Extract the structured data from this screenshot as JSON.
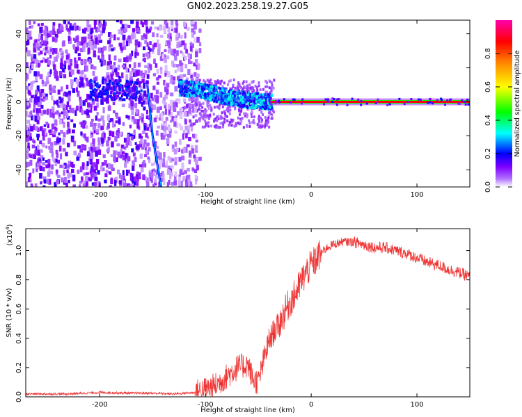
{
  "title": "GN02.2023.258.19.27.G05",
  "chart_data": [
    {
      "type": "heatmap",
      "xlabel": "Height of straight line (km)",
      "ylabel": "Frequency (Hz)",
      "xlim": [
        -270,
        150
      ],
      "ylim": [
        -50,
        48
      ],
      "x_ticks": [
        -200,
        -100,
        0,
        100
      ],
      "y_ticks": [
        -40,
        -20,
        0,
        20,
        40
      ],
      "colorbar": {
        "label": "Normalized spectral amplitude",
        "range": [
          0.0,
          1.0
        ],
        "ticks": [
          0.0,
          0.2,
          0.4,
          0.6,
          0.8
        ],
        "colors": [
          "#ffffff",
          "#7f00ff",
          "#0000ff",
          "#00ffff",
          "#00ff00",
          "#ffff00",
          "#ff8000",
          "#ff0000",
          "#ff00ff"
        ]
      },
      "features": {
        "noise_region_x": [
          -270,
          -105
        ],
        "constant_line_freq": 0,
        "constant_line_x": [
          -40,
          150
        ],
        "drifting_band": [
          {
            "x": -120,
            "y": 8
          },
          {
            "x": -100,
            "y": 6
          },
          {
            "x": -80,
            "y": 3
          },
          {
            "x": -60,
            "y": 1
          },
          {
            "x": -40,
            "y": 0
          }
        ],
        "early_band": {
          "x": [
            -200,
            -165
          ],
          "y": 7
        },
        "diagonal_trace": [
          {
            "x": -155,
            "y": 10
          },
          {
            "x": -150,
            "y": -20
          },
          {
            "x": -142,
            "y": -50
          }
        ]
      }
    },
    {
      "type": "line",
      "xlabel": "Height of straight line (km)",
      "ylabel": "SNR (10 * v/v)",
      "multiplier_label": "(x10",
      "multiplier_exp": "4",
      "multiplier_close": ")",
      "xlim": [
        -270,
        150
      ],
      "ylim": [
        0.0,
        1.15
      ],
      "x_ticks": [
        -200,
        -100,
        0,
        100
      ],
      "y_ticks": [
        0.0,
        0.2,
        0.4,
        0.6,
        0.8,
        1.0
      ],
      "series": [
        {
          "color": "#ee3333",
          "x": [
            -270,
            -250,
            -230,
            -200,
            -170,
            -150,
            -130,
            -110,
            -100,
            -90,
            -80,
            -70,
            -60,
            -55,
            -50,
            -45,
            -40,
            -35,
            -30,
            -25,
            -20,
            -15,
            -10,
            -5,
            0,
            5,
            10,
            15,
            20,
            25,
            30,
            40,
            50,
            60,
            70,
            80,
            90,
            100,
            110,
            120,
            130,
            140,
            150
          ],
          "values": [
            0.02,
            0.02,
            0.02,
            0.03,
            0.025,
            0.025,
            0.02,
            0.03,
            0.05,
            0.08,
            0.14,
            0.2,
            0.22,
            0.12,
            0.1,
            0.25,
            0.38,
            0.45,
            0.5,
            0.58,
            0.65,
            0.7,
            0.78,
            0.85,
            0.9,
            0.94,
            0.99,
            1.02,
            1.04,
            1.05,
            1.06,
            1.06,
            1.04,
            1.02,
            1.02,
            1.0,
            0.98,
            0.95,
            0.92,
            0.9,
            0.87,
            0.85,
            0.82
          ]
        }
      ]
    }
  ]
}
